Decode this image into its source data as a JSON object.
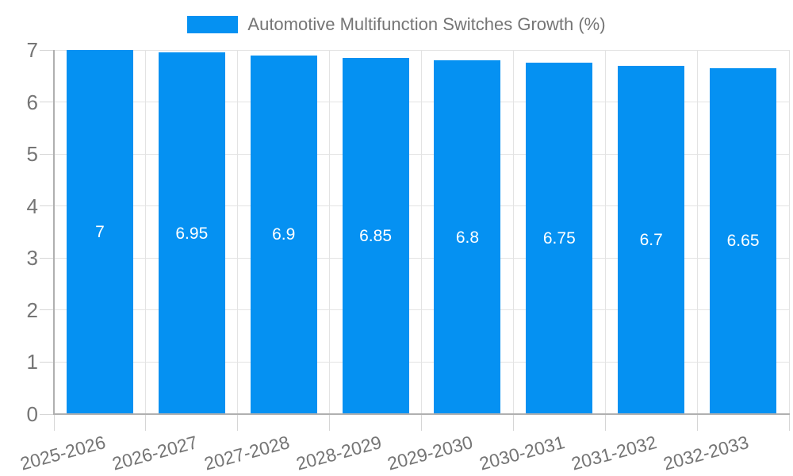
{
  "chart_data": {
    "type": "bar",
    "title": "",
    "legend_label": "Automotive Multifunction Switches Growth (%)",
    "legend_position": "top",
    "categories": [
      "2025-2026",
      "2026-2027",
      "2027-2028",
      "2028-2029",
      "2029-2030",
      "2030-2031",
      "2031-2032",
      "2032-2033"
    ],
    "series": [
      {
        "name": "Automotive Multifunction Switches Growth (%)",
        "values": [
          7,
          6.95,
          6.9,
          6.85,
          6.8,
          6.75,
          6.7,
          6.65
        ],
        "value_labels": [
          "7",
          "6.95",
          "6.9",
          "6.85",
          "6.8",
          "6.75",
          "6.7",
          "6.65"
        ]
      }
    ],
    "xlabel": "",
    "ylabel": "",
    "ylim": [
      0,
      7
    ],
    "y_ticks": [
      "0",
      "1",
      "2",
      "3",
      "4",
      "5",
      "6",
      "7"
    ],
    "grid": true,
    "x_tick_rotation_deg": -15,
    "colors": {
      "bar": "#0591f2",
      "axis_text": "#757575",
      "grid_line": "#e3e3e3",
      "axis_line": "#b0b0b0",
      "tick_line": "#d6d6d6",
      "value_label": "#ffffff",
      "background": "#ffffff"
    }
  }
}
